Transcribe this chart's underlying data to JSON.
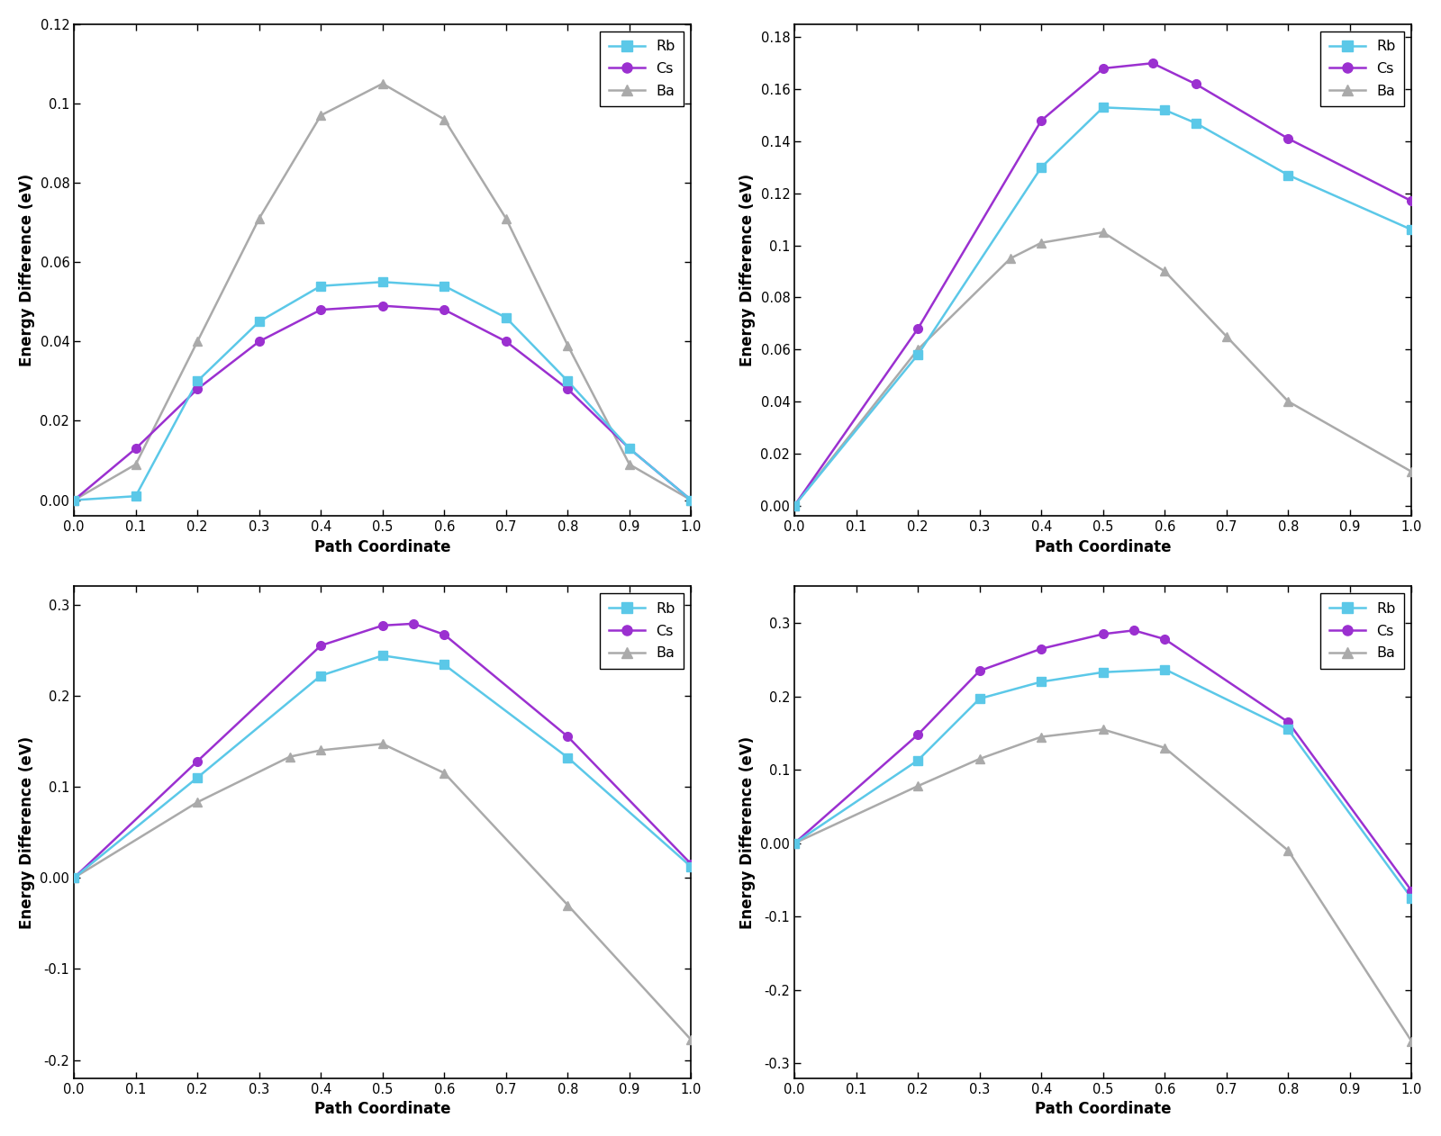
{
  "panels": [
    {
      "ylabel": "Energy Difference (eV)",
      "xlabel": "Path Coordinate",
      "ylim": [
        -0.004,
        0.12
      ],
      "yticks": [
        0.0,
        0.02,
        0.04,
        0.06,
        0.08,
        0.1,
        0.12
      ],
      "xticks": [
        0.0,
        0.1,
        0.2,
        0.3,
        0.4,
        0.5,
        0.6,
        0.7,
        0.8,
        0.9,
        1.0
      ],
      "series": {
        "Rb": {
          "x": [
            0.0,
            0.1,
            0.2,
            0.3,
            0.4,
            0.5,
            0.6,
            0.7,
            0.8,
            0.9,
            1.0
          ],
          "y": [
            0.0,
            0.001,
            0.03,
            0.045,
            0.054,
            0.055,
            0.054,
            0.046,
            0.03,
            0.013,
            0.0
          ],
          "color": "#5BC8E8",
          "marker": "s",
          "smooth": true
        },
        "Cs": {
          "x": [
            0.0,
            0.1,
            0.2,
            0.3,
            0.4,
            0.5,
            0.6,
            0.7,
            0.8,
            0.9,
            1.0
          ],
          "y": [
            0.0,
            0.013,
            0.028,
            0.04,
            0.048,
            0.049,
            0.048,
            0.04,
            0.028,
            0.013,
            0.0
          ],
          "color": "#9B30D0",
          "marker": "o",
          "smooth": true
        },
        "Ba": {
          "x": [
            0.0,
            0.1,
            0.2,
            0.3,
            0.4,
            0.5,
            0.6,
            0.7,
            0.8,
            0.9,
            1.0
          ],
          "y": [
            0.0,
            0.009,
            0.04,
            0.071,
            0.097,
            0.105,
            0.096,
            0.071,
            0.039,
            0.009,
            0.0
          ],
          "color": "#AAAAAA",
          "marker": "^",
          "smooth": false
        }
      },
      "species_order": [
        "Ba",
        "Cs",
        "Rb"
      ]
    },
    {
      "ylabel": "Energy Difference (eV)",
      "xlabel": "Path Coordinate",
      "ylim": [
        -0.004,
        0.185
      ],
      "yticks": [
        0.0,
        0.02,
        0.04,
        0.06,
        0.08,
        0.1,
        0.12,
        0.14,
        0.16,
        0.18
      ],
      "xticks": [
        0.0,
        0.1,
        0.2,
        0.3,
        0.4,
        0.5,
        0.6,
        0.7,
        0.8,
        0.9,
        1.0
      ],
      "series": {
        "Rb": {
          "x": [
            0.0,
            0.2,
            0.4,
            0.5,
            0.6,
            0.65,
            0.8,
            1.0
          ],
          "y": [
            0.0,
            0.058,
            0.13,
            0.153,
            0.152,
            0.147,
            0.127,
            0.106
          ],
          "color": "#5BC8E8",
          "marker": "s",
          "smooth": true
        },
        "Cs": {
          "x": [
            0.0,
            0.2,
            0.4,
            0.5,
            0.58,
            0.65,
            0.8,
            1.0
          ],
          "y": [
            0.0,
            0.068,
            0.148,
            0.168,
            0.17,
            0.162,
            0.141,
            0.117
          ],
          "color": "#9B30D0",
          "marker": "o",
          "smooth": true
        },
        "Ba": {
          "x": [
            0.0,
            0.2,
            0.35,
            0.4,
            0.5,
            0.6,
            0.7,
            0.8,
            1.0
          ],
          "y": [
            0.0,
            0.06,
            0.095,
            0.101,
            0.105,
            0.09,
            0.065,
            0.04,
            0.013
          ],
          "color": "#AAAAAA",
          "marker": "^",
          "smooth": true
        }
      },
      "species_order": [
        "Ba",
        "Cs",
        "Rb"
      ]
    },
    {
      "ylabel": "Energy Difference (eV)",
      "xlabel": "Path Coordinate",
      "ylim": [
        -0.22,
        0.32
      ],
      "yticks": [
        -0.2,
        -0.1,
        0.0,
        0.1,
        0.2,
        0.3
      ],
      "xticks": [
        0.0,
        0.1,
        0.2,
        0.3,
        0.4,
        0.5,
        0.6,
        0.7,
        0.8,
        0.9,
        1.0
      ],
      "series": {
        "Rb": {
          "x": [
            0.0,
            0.2,
            0.4,
            0.5,
            0.6,
            0.8,
            1.0
          ],
          "y": [
            0.0,
            0.11,
            0.222,
            0.244,
            0.234,
            0.132,
            0.012
          ],
          "color": "#5BC8E8",
          "marker": "s",
          "smooth": true
        },
        "Cs": {
          "x": [
            0.0,
            0.2,
            0.4,
            0.5,
            0.55,
            0.6,
            0.8,
            1.0
          ],
          "y": [
            0.0,
            0.128,
            0.255,
            0.277,
            0.279,
            0.267,
            0.155,
            0.015
          ],
          "color": "#9B30D0",
          "marker": "o",
          "smooth": true
        },
        "Ba": {
          "x": [
            0.0,
            0.2,
            0.35,
            0.4,
            0.5,
            0.6,
            0.8,
            1.0
          ],
          "y": [
            0.0,
            0.083,
            0.133,
            0.14,
            0.147,
            0.115,
            -0.03,
            -0.178
          ],
          "color": "#AAAAAA",
          "marker": "^",
          "smooth": true
        }
      },
      "species_order": [
        "Ba",
        "Cs",
        "Rb"
      ]
    },
    {
      "ylabel": "Energy Difference (eV)",
      "xlabel": "Path Coordinate",
      "ylim": [
        -0.32,
        0.35
      ],
      "yticks": [
        -0.3,
        -0.2,
        -0.1,
        0.0,
        0.1,
        0.2,
        0.3
      ],
      "xticks": [
        0.0,
        0.1,
        0.2,
        0.3,
        0.4,
        0.5,
        0.6,
        0.7,
        0.8,
        0.9,
        1.0
      ],
      "series": {
        "Rb": {
          "x": [
            0.0,
            0.2,
            0.3,
            0.4,
            0.5,
            0.6,
            0.8,
            1.0
          ],
          "y": [
            0.0,
            0.113,
            0.197,
            0.22,
            0.233,
            0.237,
            0.155,
            -0.075
          ],
          "color": "#5BC8E8",
          "marker": "s",
          "smooth": true
        },
        "Cs": {
          "x": [
            0.0,
            0.2,
            0.3,
            0.4,
            0.5,
            0.55,
            0.6,
            0.8,
            1.0
          ],
          "y": [
            0.0,
            0.148,
            0.235,
            0.265,
            0.285,
            0.29,
            0.278,
            0.165,
            -0.065
          ],
          "color": "#9B30D0",
          "marker": "o",
          "smooth": true
        },
        "Ba": {
          "x": [
            0.0,
            0.2,
            0.3,
            0.4,
            0.5,
            0.6,
            0.8,
            1.0
          ],
          "y": [
            0.0,
            0.078,
            0.115,
            0.145,
            0.155,
            0.13,
            -0.01,
            -0.27
          ],
          "color": "#AAAAAA",
          "marker": "^",
          "smooth": true
        }
      },
      "species_order": [
        "Ba",
        "Cs",
        "Rb"
      ]
    }
  ],
  "line_color_Rb": "#5BC8E8",
  "line_color_Cs": "#9B30D0",
  "line_color_Ba": "#AAAAAA"
}
